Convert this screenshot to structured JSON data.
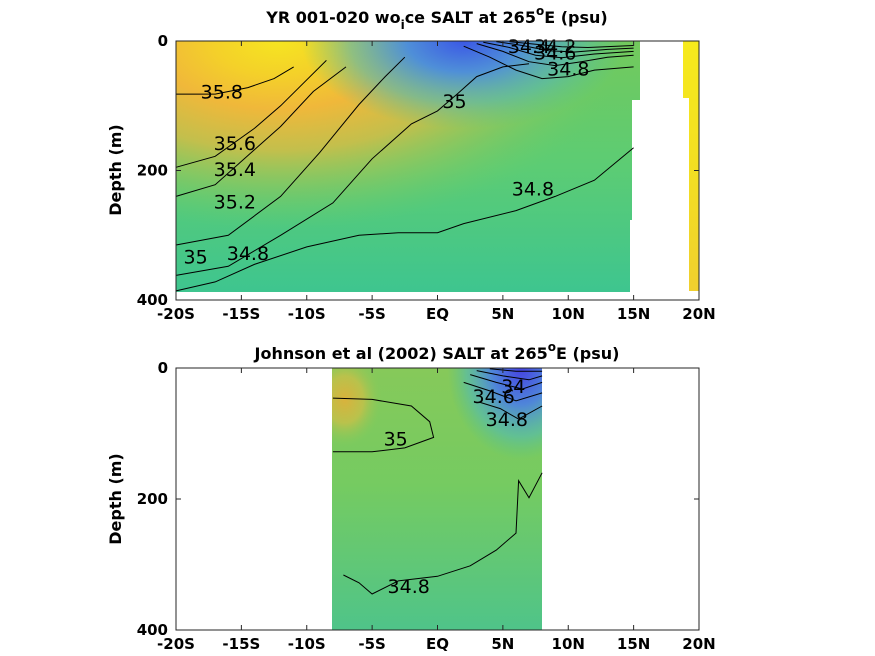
{
  "chart_data": [
    {
      "type": "contour",
      "title_main": "YR 001-020 wo",
      "title_sub": "i",
      "title_mid": "ce SALT at 265",
      "title_sup": "o",
      "title_end": "E (psu)",
      "ylabel": "Depth (m)",
      "xlim": [
        -20,
        20
      ],
      "ylim": [
        0,
        400
      ],
      "y_reversed": true,
      "x_ticks": [
        -20,
        -15,
        -10,
        -5,
        0,
        5,
        10,
        15,
        20
      ],
      "x_tick_labels": [
        "-20S",
        "-15S",
        "-10S",
        "-5S",
        "EQ",
        "5N",
        "10N",
        "15N",
        "20N"
      ],
      "y_ticks": [
        0,
        200,
        400
      ],
      "y_tick_labels": [
        "0",
        "200",
        "400"
      ],
      "data_extent": {
        "x": [
          -20,
          15
        ],
        "depth": [
          0,
          385
        ]
      },
      "contour_labels": [
        {
          "text": "35.8",
          "x": -16.5,
          "depth": 80
        },
        {
          "text": "35.6",
          "x": -15.5,
          "depth": 160
        },
        {
          "text": "35.4",
          "x": -15.5,
          "depth": 200
        },
        {
          "text": "35.2",
          "x": -15.5,
          "depth": 250
        },
        {
          "text": "35",
          "x": -18.5,
          "depth": 335
        },
        {
          "text": "34.8",
          "x": -14.5,
          "depth": 330
        },
        {
          "text": "35",
          "x": 1.3,
          "depth": 95
        },
        {
          "text": "34.8",
          "x": 7.3,
          "depth": 230
        },
        {
          "text": "34.4",
          "x": 7.0,
          "depth": 10
        },
        {
          "text": "34.2",
          "x": 9.0,
          "depth": 10
        },
        {
          "text": "34.6",
          "x": 9.0,
          "depth": 20
        },
        {
          "text": "34.8",
          "x": 10.0,
          "depth": 45
        }
      ],
      "contour_lines": [
        {
          "level": 34.8,
          "points": [
            [
              -20,
              386
            ],
            [
              -17,
              372
            ],
            [
              -14,
              345
            ],
            [
              -10,
              318
            ],
            [
              -6,
              300
            ],
            [
              -3,
              296
            ],
            [
              0,
              296
            ],
            [
              2,
              282
            ],
            [
              6,
              262
            ],
            [
              9,
              240
            ],
            [
              12,
              215
            ],
            [
              15,
              165
            ]
          ]
        },
        {
          "level": 35.0,
          "points": [
            [
              -20,
              362
            ],
            [
              -16,
              348
            ],
            [
              -12,
              300
            ],
            [
              -8,
              250
            ],
            [
              -5,
              182
            ],
            [
              -2,
              128
            ],
            [
              0,
              108
            ],
            [
              1.5,
              82
            ],
            [
              3,
              55
            ],
            [
              5,
              40
            ],
            [
              7,
              35
            ]
          ]
        },
        {
          "level": 35.2,
          "points": [
            [
              -20,
              315
            ],
            [
              -16,
              300
            ],
            [
              -12,
              240
            ],
            [
              -9,
              172
            ],
            [
              -6,
              98
            ],
            [
              -4,
              55
            ],
            [
              -2.5,
              25
            ]
          ]
        },
        {
          "level": 35.4,
          "points": [
            [
              -20,
              240
            ],
            [
              -17,
              222
            ],
            [
              -14,
              168
            ],
            [
              -12,
              132
            ],
            [
              -9.5,
              78
            ],
            [
              -7,
              40
            ]
          ]
        },
        {
          "level": 35.6,
          "points": [
            [
              -20,
              195
            ],
            [
              -17,
              178
            ],
            [
              -14,
              135
            ],
            [
              -12,
              100
            ],
            [
              -10,
              60
            ],
            [
              -8.5,
              30
            ]
          ]
        },
        {
          "level": 35.8,
          "points": [
            [
              -20,
              82
            ],
            [
              -17,
              82
            ],
            [
              -14.5,
              72
            ],
            [
              -12.5,
              58
            ],
            [
              -11,
              40
            ]
          ]
        },
        {
          "level": 34.8,
          "points": [
            [
              2,
              8
            ],
            [
              4,
              25
            ],
            [
              6,
              45
            ],
            [
              8,
              58
            ],
            [
              10,
              55
            ],
            [
              12,
              45
            ],
            [
              15,
              40
            ]
          ]
        },
        {
          "level": 34.6,
          "points": [
            [
              3,
              4
            ],
            [
              5,
              16
            ],
            [
              7,
              32
            ],
            [
              9,
              38
            ],
            [
              11,
              32
            ],
            [
              13,
              25
            ],
            [
              15,
              22
            ]
          ]
        },
        {
          "level": 34.4,
          "points": [
            [
              3.5,
              2
            ],
            [
              5.5,
              10
            ],
            [
              7.5,
              22
            ],
            [
              9.5,
              26
            ],
            [
              12,
              20
            ],
            [
              15,
              16
            ]
          ]
        },
        {
          "level": 34.2,
          "points": [
            [
              4.5,
              1
            ],
            [
              6.5,
              7
            ],
            [
              8.5,
              15
            ],
            [
              10.5,
              17
            ],
            [
              13,
              13
            ],
            [
              15,
              11
            ]
          ]
        },
        {
          "level": 34.0,
          "points": [
            [
              5.5,
              1
            ],
            [
              7.5,
              5
            ],
            [
              9.5,
              9
            ],
            [
              11.5,
              10
            ],
            [
              15,
              7
            ]
          ]
        }
      ],
      "extra_strip": {
        "x": [
          19,
          20
        ],
        "depth_top": 0,
        "depth_bottom": 385,
        "colors": [
          "#f2e81c",
          "#f2df25",
          "#f2d02c"
        ]
      }
    },
    {
      "type": "contour",
      "title_main": "Johnson et al (2002) SALT at 265",
      "title_sup": "o",
      "title_end": "E (psu)",
      "ylabel": "Depth (m)",
      "xlim": [
        -20,
        20
      ],
      "ylim": [
        0,
        400
      ],
      "y_reversed": true,
      "x_ticks": [
        -20,
        -15,
        -10,
        -5,
        0,
        5,
        10,
        15,
        20
      ],
      "x_tick_labels": [
        "-20S",
        "-15S",
        "-10S",
        "-5S",
        "EQ",
        "5N",
        "10N",
        "15N",
        "20N"
      ],
      "y_ticks": [
        0,
        200,
        400
      ],
      "y_tick_labels": [
        "0",
        "200",
        "400"
      ],
      "data_extent": {
        "x": [
          -8,
          8
        ],
        "depth": [
          0,
          400
        ]
      },
      "contour_labels": [
        {
          "text": "35",
          "x": -3.2,
          "depth": 110
        },
        {
          "text": "34.8",
          "x": -2.2,
          "depth": 335
        },
        {
          "text": "34.6",
          "x": 4.3,
          "depth": 45
        },
        {
          "text": "34",
          "x": 5.8,
          "depth": 30
        },
        {
          "text": "34.8",
          "x": 5.3,
          "depth": 80
        }
      ],
      "contour_lines": [
        {
          "level": 35.0,
          "points": [
            [
              -8,
              128
            ],
            [
              -5,
              128
            ],
            [
              -2.5,
              122
            ],
            [
              -0.3,
              106
            ],
            [
              -0.6,
              82
            ],
            [
              -2,
              58
            ],
            [
              -5,
              48
            ],
            [
              -8,
              46
            ]
          ]
        },
        {
          "level": 34.8,
          "points": [
            [
              -7.2,
              316
            ],
            [
              -6,
              328
            ],
            [
              -5,
              345
            ],
            [
              -3,
              325
            ],
            [
              0,
              318
            ],
            [
              2.5,
              302
            ],
            [
              4.5,
              278
            ],
            [
              6,
              252
            ],
            [
              6.2,
              172
            ],
            [
              7,
              198
            ],
            [
              8,
              160
            ]
          ]
        },
        {
          "level": 34.8,
          "points": [
            [
              3.2,
              52
            ],
            [
              4.8,
              62
            ],
            [
              6.2,
              78
            ],
            [
              8,
              58
            ]
          ]
        },
        {
          "level": 34.6,
          "points": [
            [
              2,
              22
            ],
            [
              4,
              35
            ],
            [
              6,
              50
            ],
            [
              8,
              38
            ]
          ]
        },
        {
          "level": 34.4,
          "points": [
            [
              2.5,
              10
            ],
            [
              4.5,
              22
            ],
            [
              6.5,
              32
            ],
            [
              8,
              22
            ]
          ]
        },
        {
          "level": 34.2,
          "points": [
            [
              3,
              4
            ],
            [
              5,
              12
            ],
            [
              7,
              18
            ],
            [
              8,
              12
            ]
          ]
        },
        {
          "level": 34.0,
          "points": [
            [
              4,
              1
            ],
            [
              6,
              5
            ],
            [
              8,
              5
            ]
          ]
        }
      ]
    }
  ]
}
